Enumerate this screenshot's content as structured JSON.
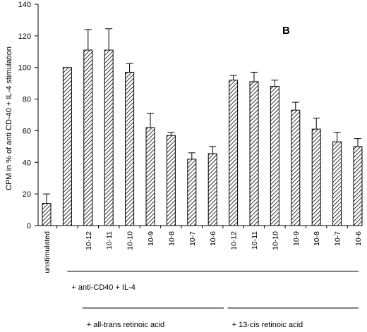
{
  "chart_data": {
    "type": "bar",
    "panel_letter": "B",
    "ylabel": "CPM in % of anti CD-40 + IL-4 stimulation",
    "ylim": [
      0,
      140
    ],
    "yticks": [
      0,
      20,
      40,
      60,
      80,
      100,
      120,
      140
    ],
    "grid": false,
    "legend": "none",
    "bar_pattern": "diagonal-hatch",
    "categories": [
      "unstimulated",
      "",
      "10-12",
      "10-11",
      "10-10",
      "10-9",
      "10-8",
      "10-7",
      "10-6",
      "10-12",
      "10-11",
      "10-10",
      "10-9",
      "10-8",
      "10-7",
      "10-6"
    ],
    "values": [
      14,
      100,
      111,
      111,
      97,
      62,
      57,
      42,
      45.5,
      92,
      91,
      88,
      73,
      61,
      53,
      50
    ],
    "errors": [
      6,
      0,
      13,
      13.5,
      5.5,
      9,
      2,
      4,
      4.5,
      3,
      6,
      4,
      5,
      7,
      6,
      5
    ],
    "group_labels": [
      {
        "text": "+ anti-CD40 + IL-4",
        "from": 1,
        "to": 15
      },
      {
        "text": "+ all-trans retinoic acid",
        "from": 2,
        "to": 8
      },
      {
        "text": "+ 13-cis retinoic acid",
        "from": 9,
        "to": 15
      }
    ]
  }
}
